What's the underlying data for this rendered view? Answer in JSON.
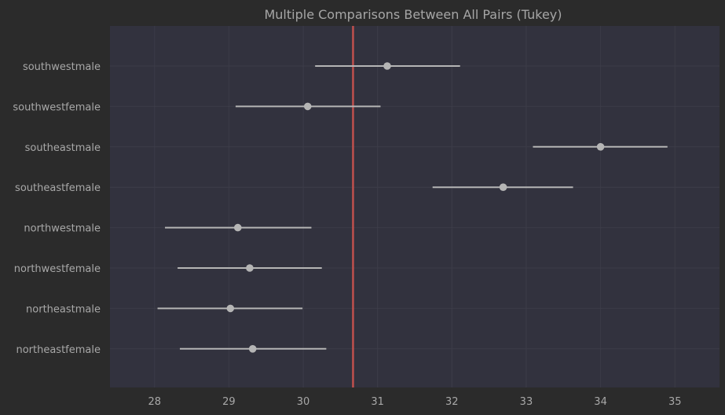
{
  "chart_data": {
    "type": "scatter",
    "title": "Multiple Comparisons Between All Pairs (Tukey)",
    "xlabel": "",
    "ylabel": "",
    "xlim": [
      27.4,
      35.6
    ],
    "x_ticks": [
      28,
      29,
      30,
      31,
      32,
      33,
      34,
      35
    ],
    "x_tick_labels": [
      "28",
      "29",
      "30",
      "31",
      "32",
      "33",
      "34",
      "35"
    ],
    "grid": true,
    "reference_line": {
      "x": 30.67,
      "color": "#c0504d"
    },
    "groups": [
      {
        "label": "southwestmale",
        "mean": 31.13,
        "lower": 30.16,
        "upper": 32.11
      },
      {
        "label": "southwestfemale",
        "mean": 30.06,
        "lower": 29.09,
        "upper": 31.04
      },
      {
        "label": "southeastmale",
        "mean": 34.0,
        "lower": 33.09,
        "upper": 34.9
      },
      {
        "label": "southeastfemale",
        "mean": 32.69,
        "lower": 31.74,
        "upper": 33.63
      },
      {
        "label": "northwestmale",
        "mean": 29.12,
        "lower": 28.14,
        "upper": 30.11
      },
      {
        "label": "northwestfemale",
        "mean": 29.28,
        "lower": 28.31,
        "upper": 30.25
      },
      {
        "label": "northeastmale",
        "mean": 29.02,
        "lower": 28.04,
        "upper": 29.99
      },
      {
        "label": "northeastfemale",
        "mean": 29.32,
        "lower": 28.34,
        "upper": 30.31
      }
    ],
    "colors": {
      "page_background": "#2b2b2b",
      "plot_background": "#32323e",
      "grid": "#3c3c48",
      "marker": "#b5b5b5",
      "errorbar": "#b5b5b5",
      "text": "#a8a8a8"
    }
  }
}
